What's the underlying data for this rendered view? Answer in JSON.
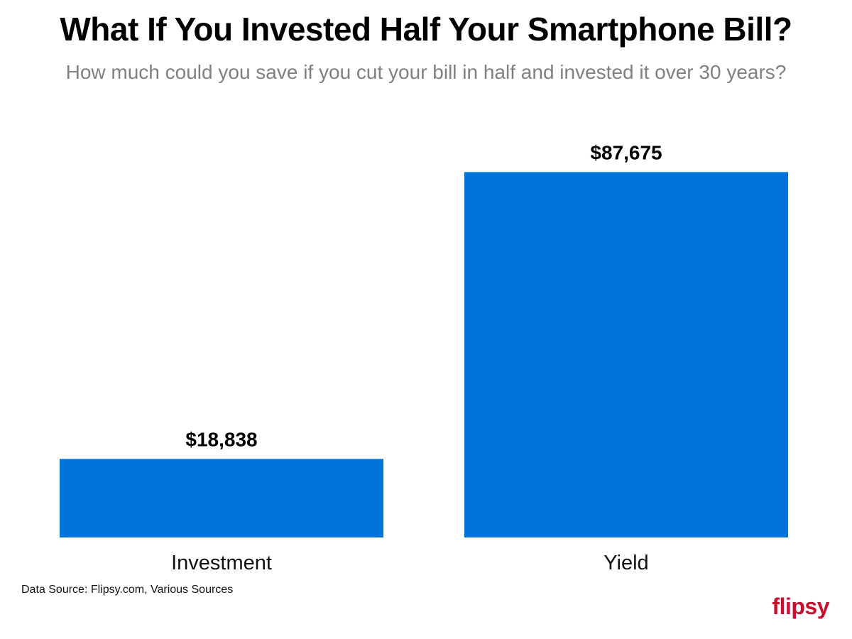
{
  "header": {
    "title": "What If You Invested Half Your Smartphone Bill?",
    "subtitle": "How much could you save if you cut your bill in half and invested it over 30 years?"
  },
  "footer": {
    "source": "Data Source: Flipsy.com, Various Sources",
    "logo_text": "flipsy"
  },
  "colors": {
    "bar": "#0074DB",
    "logo": "#C8102E"
  },
  "chart_data": {
    "type": "bar",
    "categories": [
      "Investment",
      "Yield"
    ],
    "values": [
      18838,
      87675
    ],
    "value_labels": [
      "$18,838",
      "$87,675"
    ],
    "ylim": [
      0,
      100000
    ],
    "grid": false,
    "axes_visible": false
  }
}
